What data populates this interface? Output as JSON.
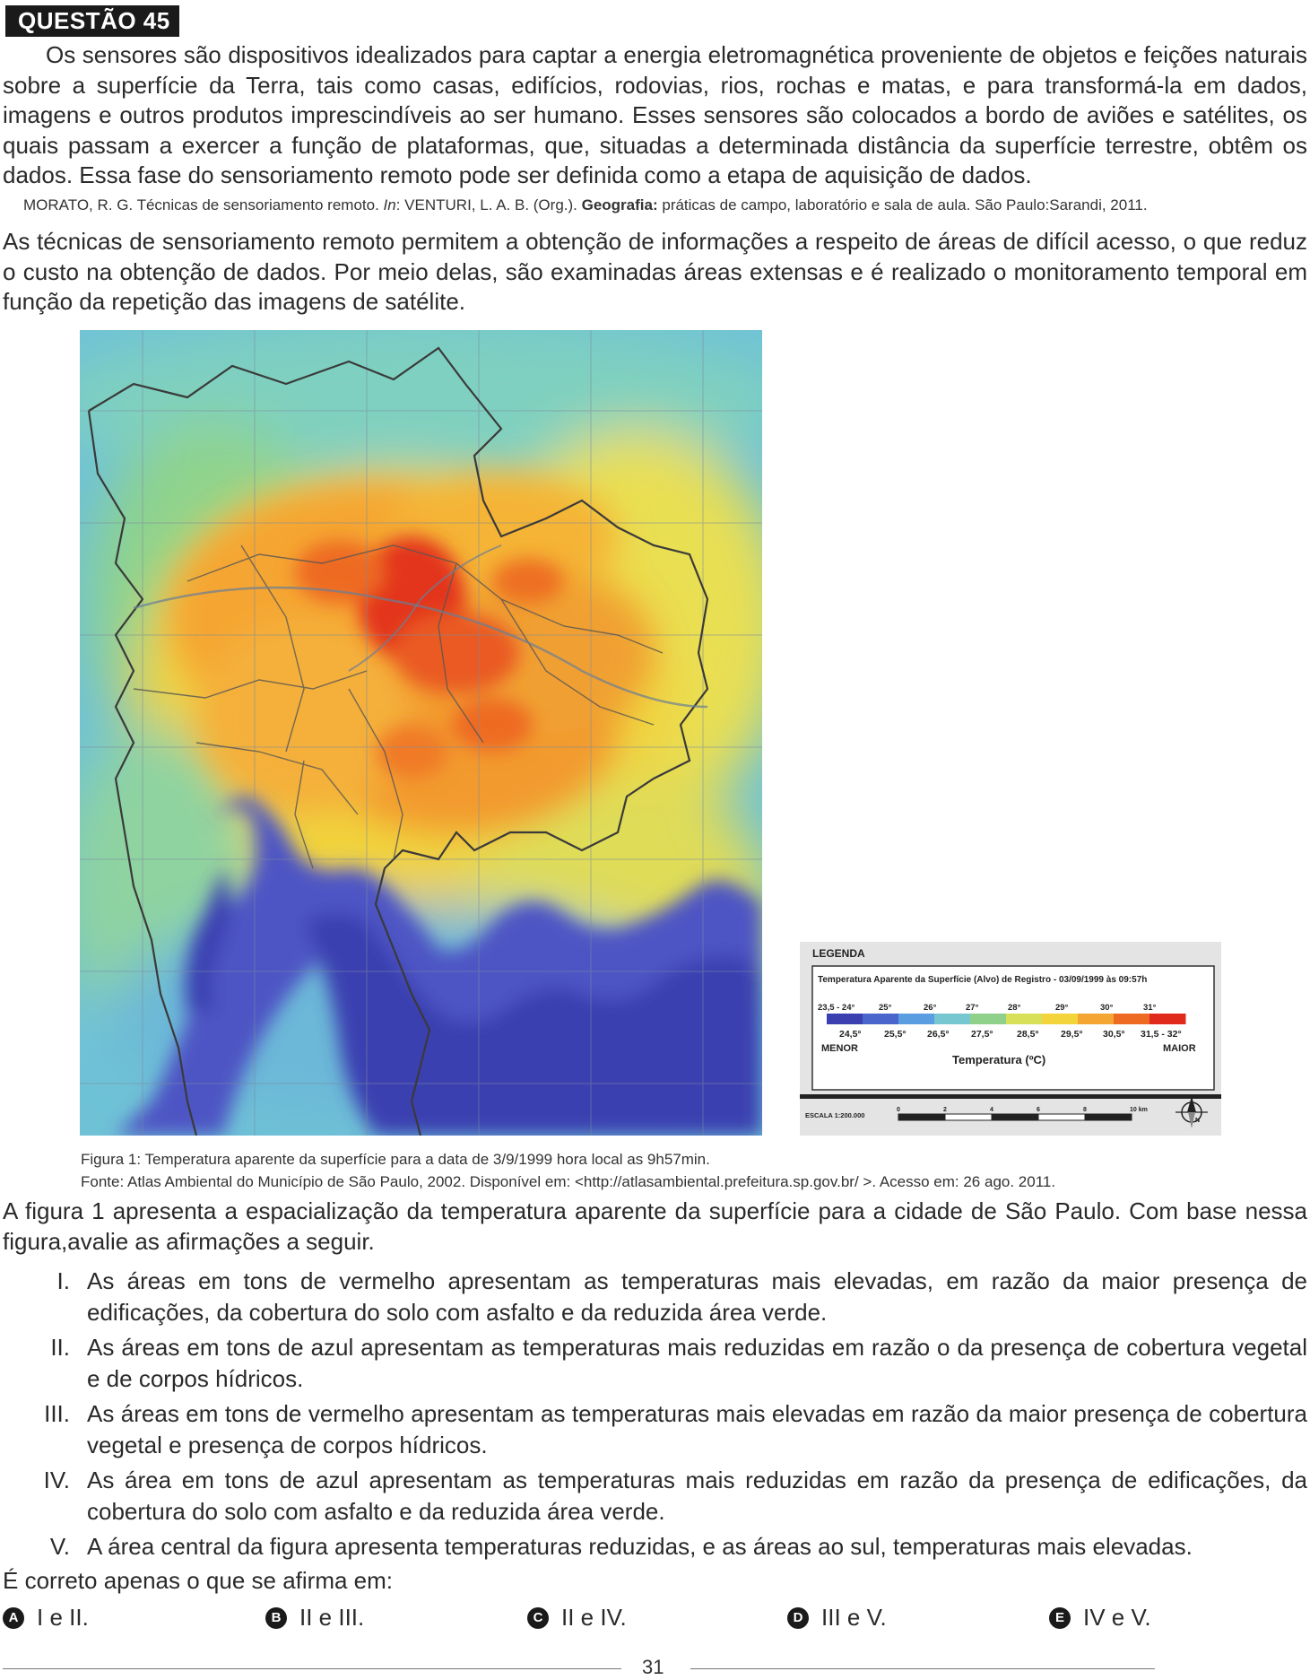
{
  "question_label": "QUESTÃO 45",
  "paragraph1": "Os sensores são dispositivos idealizados para captar a energia eletromagnética proveniente de objetos e feições naturais sobre a superfície da Terra, tais como casas, edifícios, rodovias, rios, rochas e matas, e para transformá-la em dados, imagens e outros produtos imprescindíveis ao ser humano. Esses sensores são colocados a bordo de aviões e satélites, os quais passam a exercer a função de plataformas, que, situadas a determinada distância da superfície terrestre, obtêm os dados. Essa fase do sensoriamento remoto pode ser definida como a etapa de aquisição de dados.",
  "citation": {
    "part1": "MORATO, R. G. Técnicas de sensoriamento remoto. ",
    "in": "In",
    "part2": ": VENTURI, L. A. B. (Org.). ",
    "bold": "Geografia:",
    "part3": " práticas de campo, laboratório e sala de aula. São Paulo:Sarandi, 2011."
  },
  "paragraph2": "As técnicas de sensoriamento remoto permitem a obtenção de informações a respeito de áreas de difícil acesso, o que reduz o custo na obtenção de dados. Por meio delas, são examinadas áreas extensas e é realizado o monitoramento temporal em função da repetição das imagens de satélite.",
  "legend": {
    "title": "LEGENDA",
    "subtitle": "Temperatura Aparente da Superfície (Alvo) de Registro - 03/09/1999 às 09:57h",
    "top_labels": [
      "23,5 - 24°",
      "25°",
      "26°",
      "27°",
      "28°",
      "29°",
      "30°",
      "31°"
    ],
    "bottom_labels": [
      "24,5°",
      "25,5°",
      "26,5°",
      "27,5°",
      "28,5°",
      "29,5°",
      "30,5°",
      "31,5 - 32°"
    ],
    "min_label": "MENOR",
    "max_label": "MAIOR",
    "axis_label": "Temperatura (ºC)",
    "colors": [
      "#3b3fb0",
      "#4a66cc",
      "#5a9de0",
      "#77c7d0",
      "#8fd08a",
      "#d8e05a",
      "#f3d43a",
      "#f5a531",
      "#ee6a22",
      "#e02a1c"
    ],
    "scale_label": "ESCALA 1:200.000",
    "scale_ticks": [
      "0",
      "2",
      "4",
      "6",
      "8",
      "10 km"
    ],
    "north_label": "N"
  },
  "caption1": "Figura 1: Temperatura aparente da superfície para a data de 3/9/1999 hora local as 9h57min.",
  "caption2": "Fonte: Atlas Ambiental do Município de São Paulo, 2002. Disponível em: <http://atlasambiental.prefeitura.sp.gov.br/ >. Acesso em: 26 ago. 2011.",
  "paragraph3": "A figura 1 apresenta a espacialização da temperatura aparente da superfície para a cidade de São Paulo. Com base nessa figura,avalie as afirmações a seguir.",
  "statements": [
    {
      "num": "I.",
      "text": "As áreas em tons de vermelho apresentam as temperaturas mais elevadas, em razão da maior presença de edificações, da cobertura do solo com asfalto e da reduzida área verde."
    },
    {
      "num": "II.",
      "text": "As áreas em tons de azul apresentam as temperaturas mais reduzidas em razão o da presença de cobertura vegetal e de corpos hídricos."
    },
    {
      "num": "III.",
      "text": "As áreas em tons de vermelho apresentam as temperaturas mais elevadas em razão da maior presença de cobertura vegetal e presença de corpos hídricos."
    },
    {
      "num": "IV.",
      "text": "As área em tons de azul apresentam as temperaturas mais reduzidas em razão da presença de edificações, da cobertura do solo com asfalto e da reduzida área verde."
    },
    {
      "num": "V.",
      "text": "A área central da figura apresenta temperaturas reduzidas, e as áreas ao sul, temperaturas mais elevadas."
    }
  ],
  "prompt": "É correto apenas o que se afirma em:",
  "options": [
    {
      "letter": "A",
      "text": "I e II."
    },
    {
      "letter": "B",
      "text": "II e III."
    },
    {
      "letter": "C",
      "text": "II e IV."
    },
    {
      "letter": "D",
      "text": "III e V."
    },
    {
      "letter": "E",
      "text": "IV e V."
    }
  ],
  "page_number": "31"
}
